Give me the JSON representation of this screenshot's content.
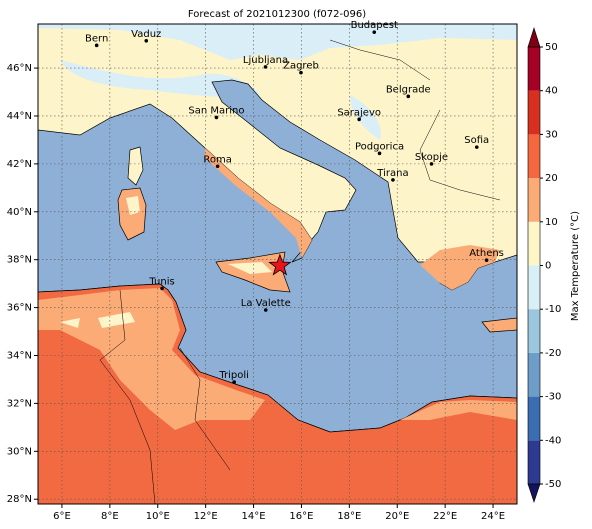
{
  "map": {
    "title": "Forecast of 2021012300 (f072-096)",
    "lonlim": [
      5,
      25
    ],
    "latlim": [
      27.8,
      47.84
    ],
    "xticks": [
      {
        "value": 6,
        "label": "6°E"
      },
      {
        "value": 8,
        "label": "8°E"
      },
      {
        "value": 10,
        "label": "10°E"
      },
      {
        "value": 12,
        "label": "12°E"
      },
      {
        "value": 14,
        "label": "14°E"
      },
      {
        "value": 16,
        "label": "16°E"
      },
      {
        "value": 18,
        "label": "18°E"
      },
      {
        "value": 20,
        "label": "20°E"
      },
      {
        "value": 22,
        "label": "22°E"
      },
      {
        "value": 24,
        "label": "24°E"
      }
    ],
    "yticks": [
      {
        "value": 28,
        "label": "28°N"
      },
      {
        "value": 30,
        "label": "30°N"
      },
      {
        "value": 32,
        "label": "32°N"
      },
      {
        "value": 34,
        "label": "34°N"
      },
      {
        "value": 36,
        "label": "36°N"
      },
      {
        "value": 38,
        "label": "38°N"
      },
      {
        "value": 40,
        "label": "40°N"
      },
      {
        "value": 42,
        "label": "42°N"
      },
      {
        "value": 44,
        "label": "44°N"
      },
      {
        "value": 46,
        "label": "46°N"
      }
    ],
    "cities": [
      {
        "name": "Bern",
        "lon": 7.45,
        "lat": 46.95
      },
      {
        "name": "Vaduz",
        "lon": 9.52,
        "lat": 47.14
      },
      {
        "name": "Budapest",
        "lon": 19.04,
        "lat": 47.5
      },
      {
        "name": "Ljubljana",
        "lon": 14.5,
        "lat": 46.05
      },
      {
        "name": "Zagreb",
        "lon": 15.98,
        "lat": 45.81
      },
      {
        "name": "Belgrade",
        "lon": 20.46,
        "lat": 44.82
      },
      {
        "name": "San Marino",
        "lon": 12.45,
        "lat": 43.94
      },
      {
        "name": "Sarajevo",
        "lon": 18.41,
        "lat": 43.86
      },
      {
        "name": "Sofia",
        "lon": 23.32,
        "lat": 42.7
      },
      {
        "name": "Podgorica",
        "lon": 19.26,
        "lat": 42.44
      },
      {
        "name": "Skopje",
        "lon": 21.43,
        "lat": 42.0
      },
      {
        "name": "Roma",
        "lon": 12.5,
        "lat": 41.9
      },
      {
        "name": "Tirana",
        "lon": 19.82,
        "lat": 41.33
      },
      {
        "name": "Athens",
        "lon": 23.73,
        "lat": 37.98
      },
      {
        "name": "Tunis",
        "lon": 10.18,
        "lat": 36.8
      },
      {
        "name": "La Valette",
        "lon": 14.51,
        "lat": 35.9
      },
      {
        "name": "Tripoli",
        "lon": 13.19,
        "lat": 32.89
      }
    ],
    "marker": {
      "lon": 15.1,
      "lat": 37.75,
      "color": "#e8141c"
    },
    "colorbar": {
      "label": "Max Temperature (°C)",
      "ticks": [
        -50,
        -40,
        -30,
        -20,
        -10,
        0,
        10,
        20,
        30,
        40,
        50
      ],
      "colors": [
        "#2d3a91",
        "#3b6db3",
        "#6f9dca",
        "#9cc5de",
        "#d9eff6",
        "#fdf6c8",
        "#fbab76",
        "#f4683f",
        "#d7301f",
        "#a50026"
      ],
      "under": "#14145e",
      "over": "#7f0015"
    }
  }
}
